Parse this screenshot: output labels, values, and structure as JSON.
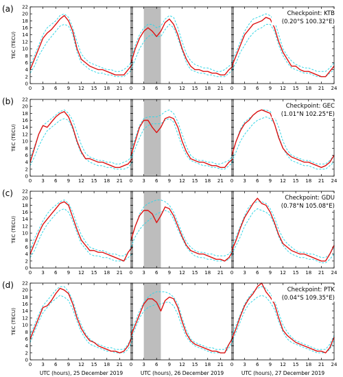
{
  "chart_data": {
    "type": "line",
    "xlabels": [
      "UTC (hours), 25 December 2019",
      "UTC (hours), 26 December 2019",
      "UTC (hours), 27 December 2019"
    ],
    "ylabel": "TEC (TECU)",
    "xticks": [
      0,
      3,
      6,
      9,
      12,
      15,
      18,
      21,
      24
    ],
    "x": [
      0,
      1,
      2,
      3,
      4,
      5,
      6,
      7,
      8,
      9,
      10,
      11,
      12,
      13,
      14,
      15,
      16,
      17,
      18,
      19,
      20,
      21,
      22,
      23,
      24
    ],
    "shaded_hours_day2": [
      3,
      7
    ],
    "colors": {
      "observed": "#dd1111",
      "bounds": "#33d6e6",
      "shade": "#bdbdbd"
    },
    "panels": [
      {
        "letter": "(a)",
        "checkpoint": "Checkpoint: KTB",
        "coords": "(0.20°S 100.32°E)",
        "ylim": [
          0,
          22
        ],
        "yticks": [
          0,
          2,
          4,
          6,
          8,
          10,
          12,
          14,
          16,
          18,
          20,
          22
        ],
        "observed": [
          [
            4,
            7,
            10,
            13,
            14.5,
            15.5,
            17,
            18.5,
            19.5,
            18,
            15,
            10,
            7,
            6,
            5,
            4.5,
            4,
            4,
            3.5,
            3,
            2.5,
            2.5,
            2.5,
            4,
            5.5
          ],
          [
            6,
            10,
            13,
            15,
            16,
            15,
            13.5,
            15,
            17.5,
            18.5,
            17,
            14,
            10,
            7,
            5,
            4,
            4,
            3.5,
            3.5,
            3,
            3,
            2.5,
            2.5,
            4,
            5
          ],
          [
            5,
            8,
            11,
            14,
            15.5,
            17,
            17.5,
            18,
            19,
            18.5,
            16,
            12,
            9,
            7,
            5,
            5,
            4,
            3.5,
            3.5,
            3,
            2.5,
            2,
            2,
            3.5,
            5
          ]
        ],
        "upper": [
          [
            5,
            8,
            11,
            14,
            16,
            17,
            18,
            19.5,
            20,
            19,
            16,
            12,
            8.5,
            7,
            6,
            5.5,
            5,
            4.5,
            4,
            4,
            3.5,
            3.5,
            4,
            5,
            6.5
          ],
          [
            7,
            11,
            14,
            16,
            17,
            17,
            16,
            16.5,
            18.5,
            19.5,
            19,
            16,
            12,
            8.5,
            6.5,
            5.5,
            5,
            4.5,
            4.5,
            4,
            3.5,
            3.5,
            4,
            5,
            6
          ],
          [
            6,
            9,
            12,
            15,
            17,
            18.5,
            19,
            19.5,
            20,
            19.5,
            18,
            14,
            10,
            8,
            6.5,
            5.5,
            5,
            4.5,
            4.5,
            4,
            3.5,
            3.5,
            3.5,
            4.5,
            6
          ]
        ],
        "lower": [
          [
            3,
            5,
            8,
            10,
            12,
            13.5,
            15,
            16.5,
            17,
            16.5,
            14,
            9,
            6,
            5,
            4,
            3.5,
            3,
            3,
            2.5,
            2.5,
            2,
            2,
            2,
            3,
            4
          ],
          [
            4,
            7,
            10,
            12,
            13.5,
            14,
            13.5,
            13.5,
            15.5,
            17,
            16,
            13,
            9.5,
            6,
            4,
            3.5,
            3,
            3,
            2.5,
            2.5,
            2,
            2,
            2,
            3,
            4
          ],
          [
            4,
            6,
            9,
            11,
            13,
            14.5,
            15.5,
            16,
            17,
            17,
            15,
            11,
            8,
            6,
            4.5,
            4,
            3.5,
            3,
            3,
            2.5,
            2,
            2,
            2,
            3,
            4
          ]
        ]
      },
      {
        "letter": "(b)",
        "checkpoint": "Checkpoint: GEC",
        "coords": "(1.01°N 102.25°E)",
        "ylim": [
          0,
          22
        ],
        "yticks": [
          0,
          2,
          4,
          6,
          8,
          10,
          12,
          14,
          16,
          18,
          20,
          22
        ],
        "observed": [
          [
            4,
            8,
            12,
            14.5,
            14,
            15.5,
            17,
            18,
            18.5,
            17,
            14,
            10,
            7,
            5,
            5,
            4.5,
            4,
            4,
            3.5,
            3,
            2.5,
            2.5,
            3,
            3.5,
            5
          ],
          [
            6,
            10,
            14,
            16,
            16,
            14,
            12.5,
            14,
            16.5,
            17,
            16.5,
            14,
            10,
            7,
            5,
            4.5,
            4,
            4,
            3.5,
            3,
            3,
            2.5,
            2.5,
            4,
            5
          ],
          [
            6,
            10,
            13,
            15,
            16,
            17.5,
            18.5,
            19,
            18.5,
            18,
            15,
            11,
            8,
            6.5,
            5.5,
            5,
            4.5,
            4,
            4,
            3.5,
            3,
            2.5,
            3,
            4,
            6
          ]
        ],
        "upper": [
          [
            5,
            8.5,
            12,
            14.5,
            15.5,
            16.5,
            17.5,
            18.5,
            19,
            18,
            16,
            12.5,
            9,
            6.5,
            5.5,
            5,
            4.5,
            4.5,
            4,
            4,
            3.5,
            3.5,
            4,
            4.5,
            6
          ],
          [
            7,
            11,
            14.5,
            16.5,
            17,
            17,
            17,
            17.5,
            18.5,
            19,
            18,
            15.5,
            12,
            8.5,
            6,
            5,
            4.5,
            4.5,
            4,
            4,
            3.5,
            3.5,
            4,
            4.5,
            6
          ],
          [
            6,
            10,
            13.5,
            15.5,
            16.5,
            17.5,
            18.5,
            19,
            19,
            18.5,
            17,
            14,
            10,
            7.5,
            6,
            5.5,
            5,
            4.5,
            4.5,
            4,
            3.5,
            3.5,
            3.5,
            4.5,
            6
          ]
        ],
        "lower": [
          [
            3,
            5.5,
            8.5,
            11,
            13,
            14,
            15,
            16,
            16.5,
            16,
            13.5,
            9.5,
            6.5,
            5,
            4,
            3.5,
            3,
            3,
            2.5,
            2.5,
            2,
            2,
            2,
            2.5,
            4
          ],
          [
            5,
            8,
            11,
            13.5,
            14.5,
            15,
            15,
            15,
            16,
            16.5,
            15.5,
            12,
            8.5,
            6,
            4.5,
            4,
            3.5,
            3,
            3,
            2.5,
            2.5,
            2,
            2,
            3,
            4
          ],
          [
            4,
            7,
            10,
            12,
            13.5,
            15,
            16,
            16.5,
            17,
            16.5,
            15,
            11.5,
            8,
            6,
            4.5,
            4,
            3.5,
            3,
            3,
            2.5,
            2,
            2,
            2,
            3,
            4
          ]
        ]
      },
      {
        "letter": "(c)",
        "checkpoint": "Checkpoint: GDU",
        "coords": "(0.78°N 105.08°E)",
        "ylim": [
          0,
          22
        ],
        "yticks": [
          0,
          2,
          4,
          6,
          8,
          10,
          12,
          14,
          16,
          18,
          20,
          22
        ],
        "observed": [
          [
            4,
            7,
            10,
            12.5,
            14,
            15.5,
            17,
            18.5,
            19,
            18,
            14.5,
            11,
            8,
            6.5,
            5,
            5,
            4.5,
            4.5,
            4,
            3.5,
            3,
            2.5,
            2,
            4.5,
            6
          ],
          [
            8,
            12,
            15,
            16.5,
            16.5,
            15.5,
            13,
            15,
            17.5,
            17,
            15,
            12,
            9,
            6.5,
            5,
            4.5,
            4,
            4,
            3.5,
            3,
            2.5,
            2.5,
            2,
            3,
            5
          ],
          [
            5,
            8,
            11.5,
            14.5,
            16.5,
            18.5,
            20,
            18.5,
            18,
            16,
            13,
            9.5,
            7,
            6,
            5,
            4.5,
            4,
            4,
            3.5,
            3,
            2.5,
            2,
            2,
            4,
            6.5
          ]
        ],
        "upper": [
          [
            5,
            8.5,
            11,
            13.5,
            15.5,
            17,
            18,
            19,
            19.5,
            18.5,
            16,
            12.5,
            9.5,
            7.5,
            6,
            5.5,
            5,
            5,
            4.5,
            4,
            4,
            3.5,
            3.5,
            4.5,
            6.5
          ],
          [
            8,
            12,
            15.5,
            17.5,
            18.5,
            19,
            19.5,
            19.5,
            19,
            18,
            16,
            13,
            10,
            7.5,
            6,
            5,
            4.5,
            4.5,
            4,
            4,
            3.5,
            3.5,
            3.5,
            4,
            5.5
          ],
          [
            6,
            9,
            12,
            15,
            17.5,
            18.5,
            19,
            19,
            18.5,
            17,
            14.5,
            11,
            8.5,
            7,
            6,
            5,
            4.5,
            4.5,
            4,
            4,
            3.5,
            3,
            3,
            4,
            6
          ]
        ],
        "lower": [
          [
            3,
            5,
            8,
            10.5,
            12.5,
            14,
            15.5,
            16.5,
            17,
            16,
            13.5,
            10,
            7,
            5.5,
            4,
            3.5,
            3.5,
            3,
            3,
            2.5,
            2,
            2,
            2,
            3,
            4
          ],
          [
            6,
            9,
            11,
            12.5,
            13.5,
            14.5,
            15.5,
            16,
            16.5,
            16,
            14,
            11,
            8.5,
            6,
            4.5,
            3.5,
            3,
            3,
            2.5,
            2.5,
            2,
            2,
            2,
            2.5,
            4
          ],
          [
            4,
            6.5,
            9,
            12,
            14,
            16,
            17,
            16.5,
            16,
            15,
            12.5,
            9,
            6.5,
            5,
            4,
            3.5,
            3,
            3,
            2.5,
            2.5,
            2,
            1.5,
            1.5,
            2.5,
            4
          ]
        ]
      },
      {
        "letter": "(d)",
        "checkpoint": "Checkpoint: PTK",
        "coords": "(0.04°S 109.35°E)",
        "ylim": [
          0,
          22
        ],
        "yticks": [
          0,
          2,
          4,
          6,
          8,
          10,
          12,
          14,
          16,
          18,
          20,
          22
        ],
        "observed": [
          [
            6,
            9,
            12,
            15,
            15.5,
            17,
            19,
            20.5,
            20,
            19,
            16,
            12,
            9,
            7,
            5.5,
            5,
            4,
            3.5,
            3,
            2.5,
            2.5,
            2,
            2.5,
            4,
            7
          ],
          [
            7,
            10,
            13,
            16,
            17.5,
            17.5,
            16.5,
            14,
            17,
            18,
            17.5,
            15,
            11,
            7.5,
            5.5,
            4.5,
            4,
            3.5,
            3,
            2.5,
            2.5,
            2,
            2,
            4.5,
            6.5
          ],
          [
            6,
            9,
            12.5,
            15.5,
            17.5,
            19,
            21,
            22,
            19.5,
            18,
            16,
            12,
            8.5,
            7,
            6,
            5,
            4.5,
            4,
            3.5,
            3,
            2.5,
            2.5,
            2,
            3.5,
            6.5
          ]
        ],
        "upper": [
          [
            7,
            10,
            13,
            15.5,
            17,
            18.5,
            20,
            21,
            21,
            19.5,
            17,
            13,
            10,
            7.5,
            6,
            5,
            4.5,
            4,
            3.5,
            3.5,
            3,
            3,
            3,
            4.5,
            7
          ],
          [
            8,
            11,
            14,
            16.5,
            18,
            19,
            19.5,
            19.5,
            19.5,
            19,
            18,
            16,
            12,
            8.5,
            6,
            5,
            4.5,
            4,
            3.5,
            3.5,
            3,
            3,
            3,
            4.5,
            7
          ],
          [
            7,
            10,
            13,
            16,
            18,
            19.5,
            20.5,
            21,
            20.5,
            19,
            17,
            13.5,
            10,
            8,
            6.5,
            5.5,
            5,
            4.5,
            4,
            3.5,
            3,
            3,
            3,
            4.5,
            7
          ]
        ],
        "lower": [
          [
            5,
            8,
            11,
            13.5,
            15,
            16.5,
            17.5,
            18.5,
            18,
            17,
            14.5,
            11,
            8,
            6,
            4.5,
            4,
            3.5,
            3,
            2.5,
            2.5,
            2,
            2,
            2,
            3,
            5.5
          ],
          [
            6,
            9,
            12,
            14,
            15,
            15.5,
            16,
            16,
            16.5,
            16.5,
            15.5,
            13,
            9.5,
            6.5,
            5,
            4,
            3.5,
            3,
            2.5,
            2,
            2,
            2,
            2,
            3.5,
            5.5
          ],
          [
            5,
            8,
            11,
            14,
            16,
            17,
            18,
            18.5,
            18,
            16.5,
            14.5,
            11,
            8,
            6,
            5,
            4.5,
            4,
            3.5,
            3,
            2.5,
            2,
            2,
            2,
            3,
            5.5
          ]
        ]
      }
    ]
  }
}
